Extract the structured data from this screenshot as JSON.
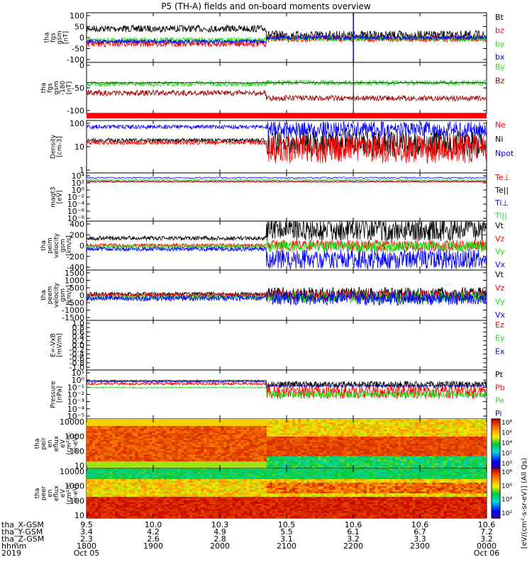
{
  "title": "P5 (TH-A) fields and on-board moments overview",
  "colors": {
    "black": "#000000",
    "red": "#ff0000",
    "green": "#22e01a",
    "blue": "#0000ff",
    "darkred": "#a00000",
    "brightgreen": "#33ff33"
  },
  "chart_data": [
    {
      "id": "bfield",
      "type": "line",
      "ylabel": [
        "tha",
        "fgs",
        "gsm",
        "[nT]"
      ],
      "yticks": [
        "100",
        "50",
        "0",
        "-50",
        "-100"
      ],
      "ylim": [
        -100,
        100
      ],
      "legend": [
        "Bt",
        "bz",
        "by",
        "bx"
      ],
      "legend_colors": [
        "#000000",
        "#ff0000",
        "#22e01a",
        "#0000ff"
      ]
    },
    {
      "id": "bangle",
      "type": "line",
      "ylabel": [
        "tha",
        "fgs",
        "gsm",
        "-180",
        "[nT]"
      ],
      "yticks": [
        "0",
        "-50",
        "-100"
      ],
      "ylim": [
        -140,
        20
      ],
      "legend": [
        "By",
        "Bz"
      ],
      "legend_colors": [
        "#22e01a",
        "#a00000"
      ]
    },
    {
      "id": "density",
      "type": "line",
      "ylabel": [
        "Density",
        "[cm-3]"
      ],
      "yticks": [
        "100",
        "10",
        "1"
      ],
      "ylim": [
        1,
        300
      ],
      "scale": "log",
      "legend": [
        "Ne",
        "Ni",
        "Npot"
      ],
      "legend_colors": [
        "#ff0000",
        "#000000",
        "#0000ff"
      ]
    },
    {
      "id": "temperature",
      "type": "line",
      "ylabel": [
        "magt3",
        "[eV]"
      ],
      "yticks": [
        "10⁴",
        "10²",
        "10⁰",
        "10⁻²",
        "10⁻⁴",
        "10⁻⁶",
        "10⁻⁸"
      ],
      "scale": "log",
      "legend": [
        "Te⊥",
        "Te||",
        "Ti⊥",
        "Ti||"
      ],
      "legend_colors": [
        "#ff0000",
        "#000000",
        "#0000ff",
        "#22e01a"
      ]
    },
    {
      "id": "ion_velocity",
      "type": "line",
      "ylabel": [
        "tha",
        "peim",
        "velocity",
        "gsm",
        "[km/s]"
      ],
      "yticks": [
        "400",
        "200",
        "0",
        "-200",
        "-400"
      ],
      "ylim": [
        -400,
        400
      ],
      "legend": [
        "Vt",
        "Vz",
        "Vy",
        "Vx"
      ],
      "legend_colors": [
        "#000000",
        "#ff0000",
        "#22e01a",
        "#0000ff"
      ]
    },
    {
      "id": "electron_velocity",
      "type": "line",
      "ylabel": [
        "tha",
        "peem",
        "velocity",
        "gsm",
        "[km/s]"
      ],
      "yticks": [
        "1500",
        "1000",
        "500",
        "0",
        "-500",
        "-1000",
        "-1500"
      ],
      "ylim": [
        -1500,
        1500
      ],
      "legend": [
        "Vt",
        "Vz",
        "Vy",
        "Vx"
      ],
      "legend_colors": [
        "#000000",
        "#ff0000",
        "#22e01a",
        "#0000ff"
      ]
    },
    {
      "id": "efield",
      "type": "line",
      "ylabel": [
        "E=-VxB",
        "[mV/m]"
      ],
      "yticks": [
        "1.0",
        "0.8",
        "0.6",
        "0.4",
        "0.2",
        "0.0",
        "-0.2",
        "-0.4",
        "-0.6",
        "-0.8",
        "-1.0"
      ],
      "ylim": [
        -1,
        1
      ],
      "legend": [
        "Ez",
        "Ey",
        "Ex"
      ],
      "legend_colors": [
        "#ff0000",
        "#22e01a",
        "#0000ff"
      ]
    },
    {
      "id": "pressure",
      "type": "line",
      "ylabel": [
        "Pressure",
        "[nPa]"
      ],
      "yticks": [
        "10¹",
        "10⁰",
        "10⁻¹",
        "10⁻²",
        "10⁻³",
        "10⁻⁴",
        "10⁻⁵"
      ],
      "scale": "log",
      "legend": [
        "Pt",
        "Pb",
        "Pe",
        "Pi"
      ],
      "legend_colors": [
        "#000000",
        "#ff0000",
        "#22e01a",
        "#0000ff"
      ]
    },
    {
      "id": "ion_spectrogram",
      "type": "heatmap",
      "ylabel": [
        "tha",
        "peir",
        "en",
        "eflux",
        "eV",
        "(cm²-s-",
        "sr-eV)"
      ],
      "yticks": [
        "10000",
        "1000",
        "100",
        "10"
      ],
      "scale": "log",
      "colorbar_ticks": [
        "10⁸",
        "10⁶",
        "10⁴",
        "10²",
        "10⁰"
      ]
    },
    {
      "id": "electron_spectrogram",
      "type": "heatmap",
      "ylabel": [
        "tha",
        "peer",
        "en",
        "eflux",
        "eV",
        "(cm²-s-",
        "sr-eV)"
      ],
      "yticks": [
        "10000",
        "1000",
        "100",
        "10"
      ],
      "scale": "log",
      "colorbar_ticks": [
        "10⁸",
        "10⁶",
        "10⁴",
        "10²"
      ],
      "colorbar_label": "[eV/(cm²-s-sr-eV)] (All Qs)"
    }
  ],
  "xaxis": {
    "row_labels": [
      "tha_X-GSM",
      "tha_Y-GSM",
      "tha_Z-GSM",
      "hhmm",
      "2019"
    ],
    "x_gsm": [
      "9.5",
      "10.0",
      "10.3",
      "10.5",
      "10.6",
      "10.6",
      "10.6"
    ],
    "y_gsm": [
      "3.4",
      "4.2",
      "4.9",
      "5.5",
      "6.1",
      "6.7",
      "7.2"
    ],
    "z_gsm": [
      "2.3",
      "2.6",
      "2.8",
      "3.1",
      "3.2",
      "3.3",
      "3.2"
    ],
    "hhmm": [
      "1800",
      "1900",
      "2000",
      "2100",
      "2200",
      "2300",
      "0000"
    ],
    "dates": [
      "Oct 05",
      "Oct 06"
    ]
  }
}
